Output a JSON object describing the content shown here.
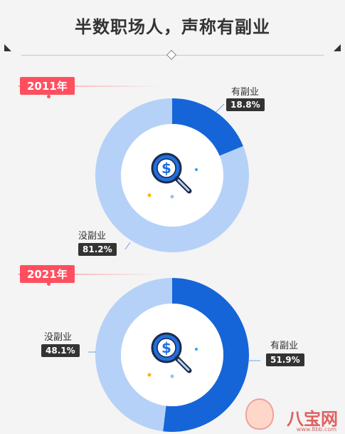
{
  "title": "半数职场人，声称有副业",
  "colors": {
    "has": "#1565d8",
    "none": "#b6d1f7",
    "tag": "#ff4f5e",
    "label_bg": "#333333"
  },
  "chart_data": [
    {
      "type": "pie",
      "year": "2011年",
      "slices": [
        {
          "label": "有副业",
          "value": 18.8,
          "value_label": "18.8%"
        },
        {
          "label": "没副业",
          "value": 81.2,
          "value_label": "81.2%"
        }
      ]
    },
    {
      "type": "pie",
      "year": "2021年",
      "slices": [
        {
          "label": "有副业",
          "value": 51.9,
          "value_label": "51.9%"
        },
        {
          "label": "没副业",
          "value": 48.1,
          "value_label": "48.1%"
        }
      ]
    }
  ],
  "watermark": {
    "brand": "八宝网",
    "url": "www.8bb.com"
  },
  "icon": "magnifier-dollar-icon"
}
